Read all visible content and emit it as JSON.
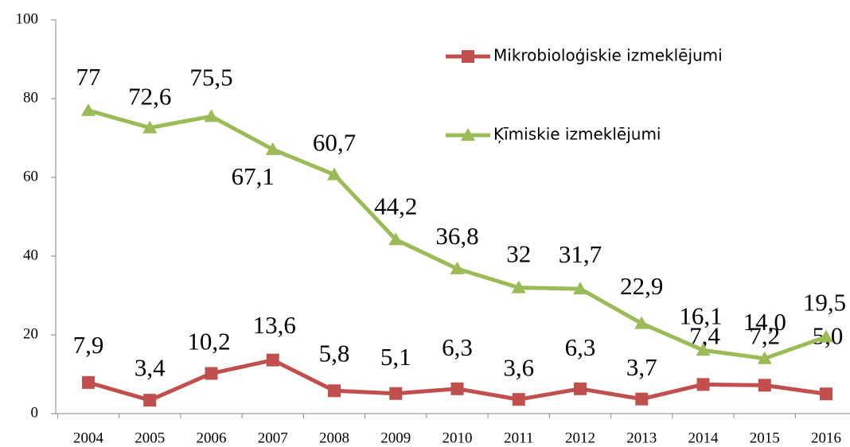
{
  "chart_data": {
    "type": "line",
    "categories": [
      "2004",
      "2005",
      "2006",
      "2007",
      "2008",
      "2009",
      "2010",
      "2011",
      "2012",
      "2013",
      "2014",
      "2015",
      "2016"
    ],
    "ylim": [
      0,
      100
    ],
    "yticks": [
      0,
      20,
      40,
      60,
      80,
      100
    ],
    "series": [
      {
        "name": "Mikrobioloģiskie izmeklējumi",
        "color": "#c0504d",
        "values": [
          7.9,
          3.4,
          10.2,
          13.6,
          5.8,
          5.1,
          6.3,
          3.6,
          6.3,
          3.7,
          7.4,
          7.2,
          5.0
        ],
        "value_labels": [
          "7,9",
          "3,4",
          "10,2",
          "13,6",
          "5,8",
          "5,1",
          "6,3",
          "3,6",
          "6,3",
          "3,7",
          "7,4",
          "7,2",
          "5,0"
        ]
      },
      {
        "name": "Ķīmiskie izmeklējumi",
        "color": "#9bbb59",
        "values": [
          77,
          72.6,
          75.5,
          67.1,
          60.7,
          44.2,
          36.8,
          32,
          31.7,
          22.9,
          16.1,
          14.0,
          19.5
        ],
        "value_labels": [
          "77",
          "72,6",
          "75,5",
          "67,1",
          "60,7",
          "44,2",
          "36,8",
          "32",
          "31,7",
          "22,9",
          "16,1",
          "14,0",
          "19,5"
        ]
      }
    ]
  }
}
